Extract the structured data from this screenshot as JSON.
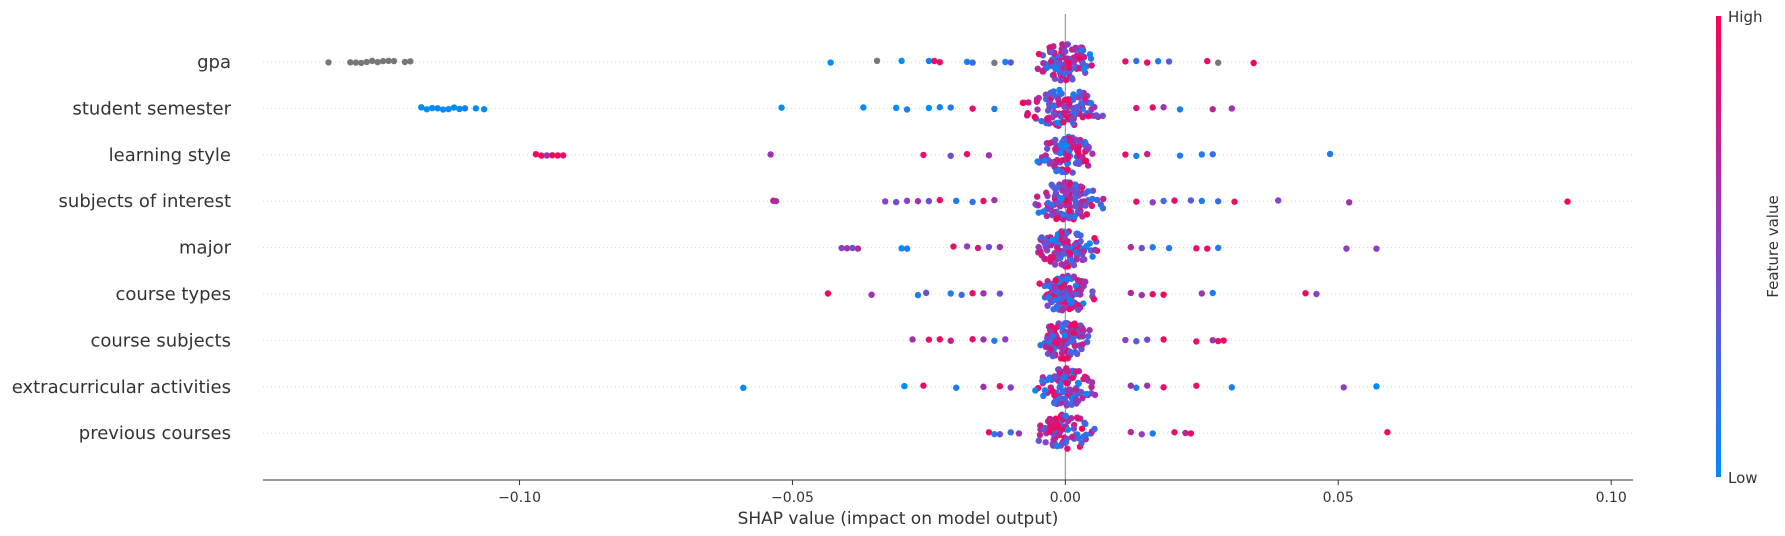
{
  "chart_data": {
    "type": "scatter",
    "subtype": "shap-beeswarm",
    "xlabel": "SHAP value (impact on model output)",
    "xlim": [
      -0.147,
      0.104
    ],
    "xticks": [
      -0.1,
      -0.05,
      0.0,
      0.05,
      0.1
    ],
    "xtick_labels": [
      "−0.10",
      "−0.05",
      "0.00",
      "0.05",
      "0.10"
    ],
    "colorbar": {
      "label": "Feature value",
      "high_label": "High",
      "low_label": "Low",
      "low_color": "#008bfb",
      "high_color": "#ff0052",
      "missing_color": "#777777"
    },
    "features": [
      {
        "name": "gpa",
        "outliers": [
          {
            "x": -0.135,
            "c": -1
          },
          {
            "x": -0.131,
            "c": -1
          },
          {
            "x": -0.13,
            "c": -1
          },
          {
            "x": -0.129,
            "c": -1
          },
          {
            "x": -0.128,
            "c": -1
          },
          {
            "x": -0.127,
            "c": -1
          },
          {
            "x": -0.126,
            "c": -1
          },
          {
            "x": -0.125,
            "c": -1
          },
          {
            "x": -0.124,
            "c": -1
          },
          {
            "x": -0.123,
            "c": -1
          },
          {
            "x": -0.121,
            "c": -1
          },
          {
            "x": -0.12,
            "c": -1
          },
          {
            "x": -0.043,
            "c": 0.0
          },
          {
            "x": -0.0345,
            "c": -1
          },
          {
            "x": -0.03,
            "c": 0.0
          },
          {
            "x": -0.025,
            "c": 0.05
          },
          {
            "x": -0.024,
            "c": 0.9
          },
          {
            "x": -0.023,
            "c": 0.9
          },
          {
            "x": -0.018,
            "c": 0.1
          },
          {
            "x": -0.017,
            "c": 0.2
          },
          {
            "x": -0.013,
            "c": -1
          },
          {
            "x": -0.011,
            "c": 0.1
          },
          {
            "x": -0.01,
            "c": 0.3
          },
          {
            "x": 0.011,
            "c": 0.9
          },
          {
            "x": 0.013,
            "c": 0.2
          },
          {
            "x": 0.015,
            "c": 0.95
          },
          {
            "x": 0.017,
            "c": 0.1
          },
          {
            "x": 0.019,
            "c": 0.3
          },
          {
            "x": 0.026,
            "c": 0.9
          },
          {
            "x": 0.028,
            "c": -1
          },
          {
            "x": 0.0345,
            "c": 0.95
          }
        ],
        "spread": 0.0085,
        "count": 110
      },
      {
        "name": "student semester",
        "outliers": [
          {
            "x": -0.118,
            "c": 0.0
          },
          {
            "x": -0.117,
            "c": 0.0
          },
          {
            "x": -0.116,
            "c": 0.0
          },
          {
            "x": -0.115,
            "c": 0.05
          },
          {
            "x": -0.114,
            "c": 0.0
          },
          {
            "x": -0.113,
            "c": 0.0
          },
          {
            "x": -0.112,
            "c": 0.0
          },
          {
            "x": -0.111,
            "c": 0.0
          },
          {
            "x": -0.11,
            "c": 0.05
          },
          {
            "x": -0.108,
            "c": 0.0
          },
          {
            "x": -0.1065,
            "c": 0.0
          },
          {
            "x": -0.052,
            "c": 0.0
          },
          {
            "x": -0.037,
            "c": 0.0
          },
          {
            "x": -0.031,
            "c": 0.0
          },
          {
            "x": -0.029,
            "c": 0.1
          },
          {
            "x": -0.025,
            "c": 0.0
          },
          {
            "x": -0.023,
            "c": 0.05
          },
          {
            "x": -0.021,
            "c": 0.1
          },
          {
            "x": -0.017,
            "c": 0.9
          },
          {
            "x": -0.013,
            "c": 0.1
          },
          {
            "x": 0.013,
            "c": 0.8
          },
          {
            "x": 0.016,
            "c": 0.9
          },
          {
            "x": 0.018,
            "c": 0.6
          },
          {
            "x": 0.021,
            "c": 0.1
          },
          {
            "x": 0.027,
            "c": 0.7
          },
          {
            "x": 0.0305,
            "c": 0.6
          }
        ],
        "spread": 0.011,
        "count": 120
      },
      {
        "name": "learning style",
        "outliers": [
          {
            "x": -0.097,
            "c": 0.95
          },
          {
            "x": -0.096,
            "c": 0.95
          },
          {
            "x": -0.095,
            "c": 0.6
          },
          {
            "x": -0.094,
            "c": 0.95
          },
          {
            "x": -0.093,
            "c": 0.95
          },
          {
            "x": -0.092,
            "c": 0.9
          },
          {
            "x": -0.054,
            "c": 0.6
          },
          {
            "x": -0.026,
            "c": 0.9
          },
          {
            "x": -0.021,
            "c": 0.4
          },
          {
            "x": -0.018,
            "c": 0.9
          },
          {
            "x": -0.014,
            "c": 0.6
          },
          {
            "x": 0.011,
            "c": 0.9
          },
          {
            "x": 0.013,
            "c": 0.1
          },
          {
            "x": 0.015,
            "c": 0.8
          },
          {
            "x": 0.021,
            "c": 0.1
          },
          {
            "x": 0.025,
            "c": 0.1
          },
          {
            "x": 0.027,
            "c": 0.2
          },
          {
            "x": 0.0485,
            "c": 0.1
          }
        ],
        "spread": 0.0085,
        "count": 100
      },
      {
        "name": "subjects of interest",
        "outliers": [
          {
            "x": -0.0535,
            "c": 0.8
          },
          {
            "x": -0.053,
            "c": 0.6
          },
          {
            "x": -0.033,
            "c": 0.5
          },
          {
            "x": -0.031,
            "c": 0.4
          },
          {
            "x": -0.029,
            "c": 0.5
          },
          {
            "x": -0.027,
            "c": 0.6
          },
          {
            "x": -0.025,
            "c": 0.4
          },
          {
            "x": -0.023,
            "c": 0.9
          },
          {
            "x": -0.02,
            "c": 0.1
          },
          {
            "x": -0.017,
            "c": 0.2
          },
          {
            "x": -0.015,
            "c": 0.9
          },
          {
            "x": -0.013,
            "c": 0.6
          },
          {
            "x": 0.013,
            "c": 0.9
          },
          {
            "x": 0.016,
            "c": 0.5
          },
          {
            "x": 0.018,
            "c": 0.2
          },
          {
            "x": 0.02,
            "c": 0.9
          },
          {
            "x": 0.023,
            "c": 0.3
          },
          {
            "x": 0.025,
            "c": 0.1
          },
          {
            "x": 0.028,
            "c": 0.2
          },
          {
            "x": 0.031,
            "c": 0.9
          },
          {
            "x": 0.039,
            "c": 0.5
          },
          {
            "x": 0.052,
            "c": 0.6
          },
          {
            "x": 0.092,
            "c": 0.95
          }
        ],
        "spread": 0.01,
        "count": 115
      },
      {
        "name": "major",
        "outliers": [
          {
            "x": -0.041,
            "c": 0.5
          },
          {
            "x": -0.04,
            "c": 0.6
          },
          {
            "x": -0.039,
            "c": 0.4
          },
          {
            "x": -0.038,
            "c": 0.7
          },
          {
            "x": -0.03,
            "c": 0.0
          },
          {
            "x": -0.029,
            "c": 0.1
          },
          {
            "x": -0.0205,
            "c": 0.9
          },
          {
            "x": -0.018,
            "c": 0.5
          },
          {
            "x": -0.016,
            "c": 0.8
          },
          {
            "x": -0.014,
            "c": 0.4
          },
          {
            "x": -0.012,
            "c": 0.6
          },
          {
            "x": 0.012,
            "c": 0.7
          },
          {
            "x": 0.014,
            "c": 0.4
          },
          {
            "x": 0.016,
            "c": 0.1
          },
          {
            "x": 0.019,
            "c": 0.1
          },
          {
            "x": 0.024,
            "c": 0.9
          },
          {
            "x": 0.026,
            "c": 0.9
          },
          {
            "x": 0.028,
            "c": 0.1
          },
          {
            "x": 0.0515,
            "c": 0.5
          },
          {
            "x": 0.057,
            "c": 0.5
          }
        ],
        "spread": 0.009,
        "count": 110
      },
      {
        "name": "course types",
        "outliers": [
          {
            "x": -0.0435,
            "c": 0.95
          },
          {
            "x": -0.0355,
            "c": 0.6
          },
          {
            "x": -0.027,
            "c": 0.1
          },
          {
            "x": -0.0255,
            "c": 0.4
          },
          {
            "x": -0.021,
            "c": 0.1
          },
          {
            "x": -0.019,
            "c": 0.2
          },
          {
            "x": -0.017,
            "c": 0.9
          },
          {
            "x": -0.015,
            "c": 0.6
          },
          {
            "x": -0.012,
            "c": 0.4
          },
          {
            "x": 0.012,
            "c": 0.7
          },
          {
            "x": 0.014,
            "c": 0.6
          },
          {
            "x": 0.016,
            "c": 0.9
          },
          {
            "x": 0.018,
            "c": 0.95
          },
          {
            "x": 0.025,
            "c": 0.6
          },
          {
            "x": 0.027,
            "c": 0.1
          },
          {
            "x": 0.044,
            "c": 0.95
          },
          {
            "x": 0.046,
            "c": 0.5
          }
        ],
        "spread": 0.0085,
        "count": 110
      },
      {
        "name": "course subjects",
        "outliers": [
          {
            "x": -0.028,
            "c": 0.6
          },
          {
            "x": -0.025,
            "c": 0.9
          },
          {
            "x": -0.023,
            "c": 0.95
          },
          {
            "x": -0.021,
            "c": 0.8
          },
          {
            "x": -0.017,
            "c": 0.9
          },
          {
            "x": -0.015,
            "c": 0.6
          },
          {
            "x": -0.013,
            "c": 0.1
          },
          {
            "x": -0.011,
            "c": 0.5
          },
          {
            "x": 0.011,
            "c": 0.5
          },
          {
            "x": 0.013,
            "c": 0.3
          },
          {
            "x": 0.015,
            "c": 0.4
          },
          {
            "x": 0.018,
            "c": 0.9
          },
          {
            "x": 0.024,
            "c": 0.9
          },
          {
            "x": 0.027,
            "c": 0.6
          },
          {
            "x": 0.028,
            "c": 0.9
          },
          {
            "x": 0.029,
            "c": 0.95
          }
        ],
        "spread": 0.0085,
        "count": 110
      },
      {
        "name": "extracurricular activities",
        "outliers": [
          {
            "x": -0.059,
            "c": 0.0
          },
          {
            "x": -0.0295,
            "c": 0.0
          },
          {
            "x": -0.026,
            "c": 0.9
          },
          {
            "x": -0.02,
            "c": 0.1
          },
          {
            "x": -0.015,
            "c": 0.6
          },
          {
            "x": -0.012,
            "c": 0.9
          },
          {
            "x": -0.01,
            "c": 0.5
          },
          {
            "x": 0.012,
            "c": 0.6
          },
          {
            "x": 0.013,
            "c": 0.1
          },
          {
            "x": 0.015,
            "c": 0.6
          },
          {
            "x": 0.018,
            "c": 0.9
          },
          {
            "x": 0.024,
            "c": 0.9
          },
          {
            "x": 0.0305,
            "c": 0.1
          },
          {
            "x": 0.051,
            "c": 0.5
          },
          {
            "x": 0.057,
            "c": 0.0
          }
        ],
        "spread": 0.0085,
        "count": 110
      },
      {
        "name": "previous courses",
        "outliers": [
          {
            "x": -0.014,
            "c": 0.9
          },
          {
            "x": -0.013,
            "c": 0.1
          },
          {
            "x": -0.012,
            "c": 0.4
          },
          {
            "x": -0.01,
            "c": 0.2
          },
          {
            "x": -0.0085,
            "c": 0.6
          },
          {
            "x": 0.012,
            "c": 0.7
          },
          {
            "x": 0.014,
            "c": 0.5
          },
          {
            "x": 0.016,
            "c": 0.1
          },
          {
            "x": 0.02,
            "c": 0.9
          },
          {
            "x": 0.022,
            "c": 0.7
          },
          {
            "x": 0.023,
            "c": 0.95
          },
          {
            "x": 0.059,
            "c": 0.95
          }
        ],
        "spread": 0.008,
        "count": 85
      }
    ]
  }
}
